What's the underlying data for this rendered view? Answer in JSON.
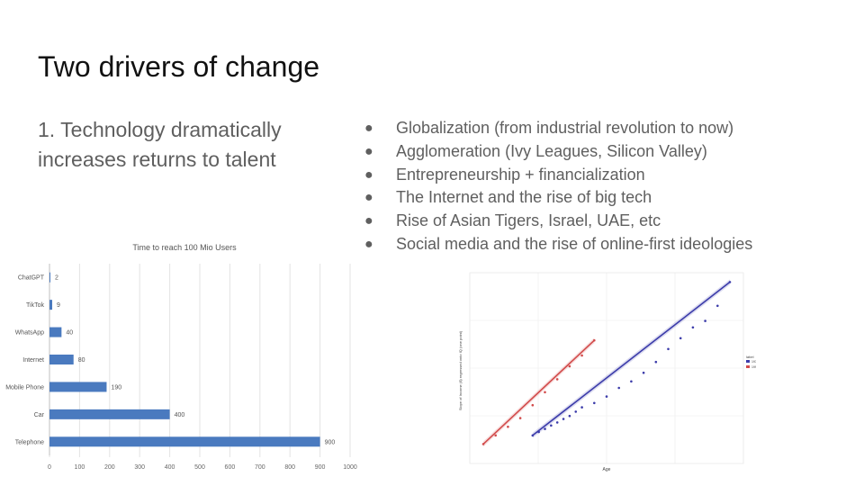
{
  "slide": {
    "title": "Two drivers of change",
    "subtitle": "1. Technology dramatically increases returns to talent"
  },
  "bullets": [
    "Globalization (from industrial revolution to now)",
    "Agglomeration (Ivy Leagues, Silicon Valley)",
    "Entrepreneurship + financialization",
    "The Internet and the rise of big tech",
    "Rise of Asian Tigers, Israel, UAE, etc",
    "Social media and the rise of online-first ideologies"
  ],
  "bullet_glyph": "●",
  "colors": {
    "bar": "#4a7abf",
    "series_blue": "#3c3caa",
    "series_red": "#d24b4b"
  },
  "chart_data": [
    {
      "type": "bar",
      "orientation": "horizontal",
      "title": "Time to reach 100 Mio Users",
      "categories": [
        "ChatGPT",
        "TikTok",
        "WhatsApp",
        "Internet",
        "Mobile Phone",
        "Car",
        "Telephone"
      ],
      "values": [
        2,
        9,
        40,
        80,
        190,
        400,
        900
      ],
      "data_labels": [
        "2",
        "9",
        "40",
        "80",
        "190",
        "400",
        "900"
      ],
      "xlim": [
        0,
        1000
      ],
      "xticks": [
        "0",
        "100",
        "200",
        "300",
        "400",
        "500",
        "600",
        "700",
        "800",
        "900",
        "1000"
      ],
      "grid": true
    },
    {
      "type": "scatter",
      "xlabel": "Age",
      "ylabel": "Slope of Income ($) regressed onto IQ (one point)",
      "legend": {
        "title": "label",
        "entries": [
          "1979",
          "1997"
        ],
        "placement": "right"
      },
      "xlim": [
        0,
        40
      ],
      "ylim": [
        0,
        400
      ],
      "grid": true,
      "series": [
        {
          "name": "1979",
          "color": "blue",
          "x": [
            8,
            9,
            10,
            11,
            12,
            13,
            14,
            15,
            16,
            18,
            20,
            22,
            24,
            26,
            28,
            30,
            32,
            34,
            36,
            38,
            40
          ],
          "y": [
            40,
            48,
            55,
            63,
            70,
            78,
            85,
            95,
            105,
            115,
            130,
            150,
            165,
            185,
            210,
            240,
            265,
            290,
            305,
            340,
            395
          ]
        },
        {
          "name": "1997",
          "color": "red",
          "x": [
            0,
            2,
            4,
            6,
            8,
            10,
            12,
            14,
            16,
            18
          ],
          "y": [
            20,
            40,
            60,
            80,
            110,
            140,
            170,
            200,
            225,
            260
          ]
        }
      ]
    }
  ]
}
